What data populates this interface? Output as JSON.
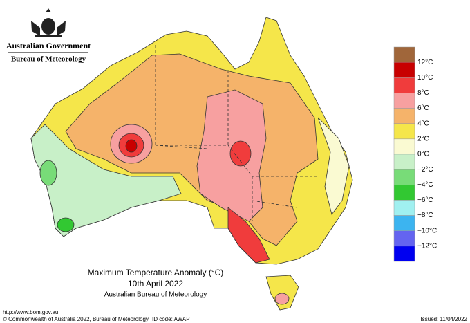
{
  "header": {
    "government": "Australian Government",
    "bureau": "Bureau of Meteorology"
  },
  "title": {
    "line1": "Maximum Temperature Anomaly (°C)",
    "line2": "10th April 2022",
    "line3": "Australian Bureau of Meteorology"
  },
  "legend": {
    "colors": [
      "#a0663a",
      "#c80000",
      "#f03c3c",
      "#f7a0a0",
      "#f5b36a",
      "#f5e64a",
      "#fafad2",
      "#c8f0c8",
      "#78dc78",
      "#32c832",
      "#a0f0f0",
      "#3cb4f0",
      "#6464f0",
      "#0000f0"
    ],
    "labels": [
      "12°C",
      "10°C",
      "8°C",
      "6°C",
      "4°C",
      "2°C",
      "0°C",
      "−2°C",
      "−4°C",
      "−6°C",
      "−8°C",
      "−10°C",
      "−12°C"
    ]
  },
  "footer": {
    "url": "http://www.bom.gov.au",
    "copyright": "© Commonwealth of Australia 2022, Bureau of Meteorology",
    "id_code": "ID code: AWAP",
    "issued": "Issued: 11/04/2022"
  }
}
